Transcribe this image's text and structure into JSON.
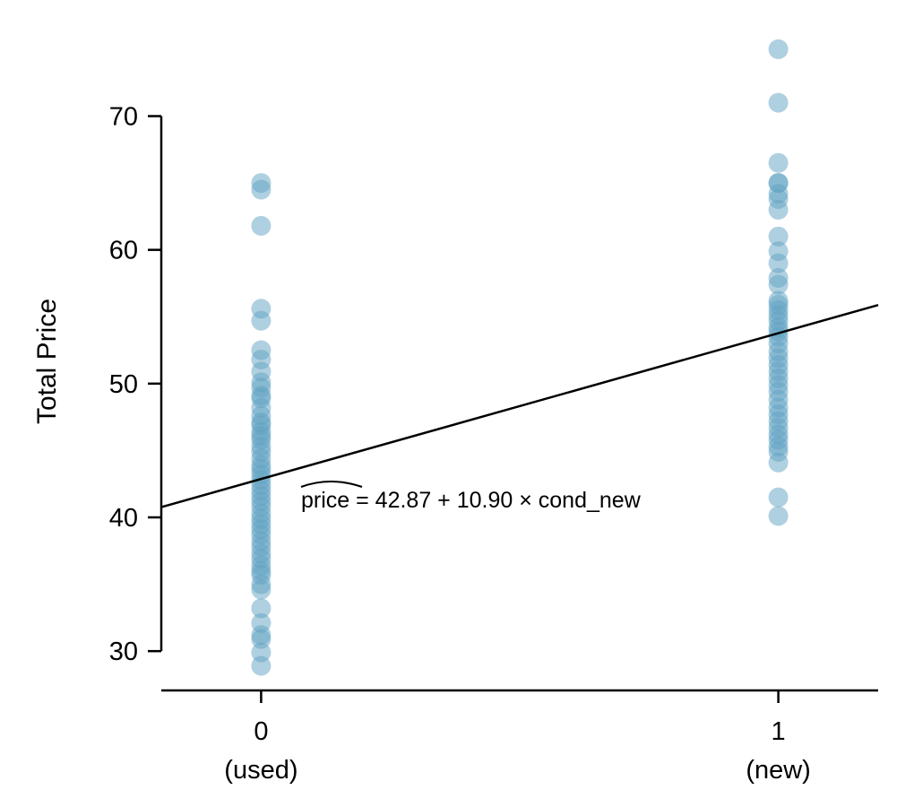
{
  "chart_data": {
    "type": "scatter",
    "title": "",
    "xlabel": "",
    "ylabel": "Total Price",
    "grid": false,
    "xlim": [
      -0.193,
      1.193
    ],
    "ylim": [
      28,
      76
    ],
    "x_ticks": [
      {
        "value": 0,
        "label": "0",
        "sublabel": "(used)"
      },
      {
        "value": 1,
        "label": "1",
        "sublabel": "(new)"
      }
    ],
    "y_ticks": [
      {
        "value": 30,
        "label": "30"
      },
      {
        "value": 40,
        "label": "40"
      },
      {
        "value": 50,
        "label": "50"
      },
      {
        "value": 60,
        "label": "60"
      },
      {
        "value": 70,
        "label": "70"
      }
    ],
    "point_color": "#5fa2c2",
    "point_opacity": 0.5,
    "series": [
      {
        "x": 0,
        "values": [
          65,
          64.5,
          61.8,
          55.6,
          54.7,
          52.5,
          51.8,
          50.9,
          50.1,
          49.7,
          49.1,
          48.9,
          48.2,
          47.6,
          47.1,
          46.9,
          46.4,
          46.1,
          45.8,
          45.3,
          44.9,
          44.4,
          43.9,
          43.6,
          43.2,
          42.8,
          42.4,
          42.0,
          41.6,
          41.2,
          40.8,
          40.3,
          39.9,
          39.5,
          39.1,
          38.7,
          38.2,
          37.8,
          37.3,
          36.9,
          36.4,
          36.0,
          35.7,
          35.0,
          34.6,
          33.2,
          32.1,
          31.2,
          30.9,
          29.9,
          28.9
        ]
      },
      {
        "x": 1,
        "values": [
          75,
          71,
          66.5,
          65,
          65,
          64.2,
          63.8,
          63,
          61,
          59.9,
          59,
          57.9,
          57.4,
          56.2,
          55.9,
          55.5,
          55.1,
          54.7,
          54.2,
          53.9,
          53.5,
          53,
          52.4,
          51.9,
          51.4,
          50.9,
          50.4,
          49.9,
          49.4,
          48.8,
          48.2,
          47.7,
          47.2,
          46.7,
          46.2,
          45.8,
          45.3,
          44.9,
          44.1,
          41.5,
          40.1
        ]
      }
    ],
    "regression": {
      "intercept": 42.87,
      "slope": 10.9,
      "color": "#000000",
      "label_hat": "price",
      "label_rest": " = 42.87 + 10.90 × cond_new"
    }
  }
}
